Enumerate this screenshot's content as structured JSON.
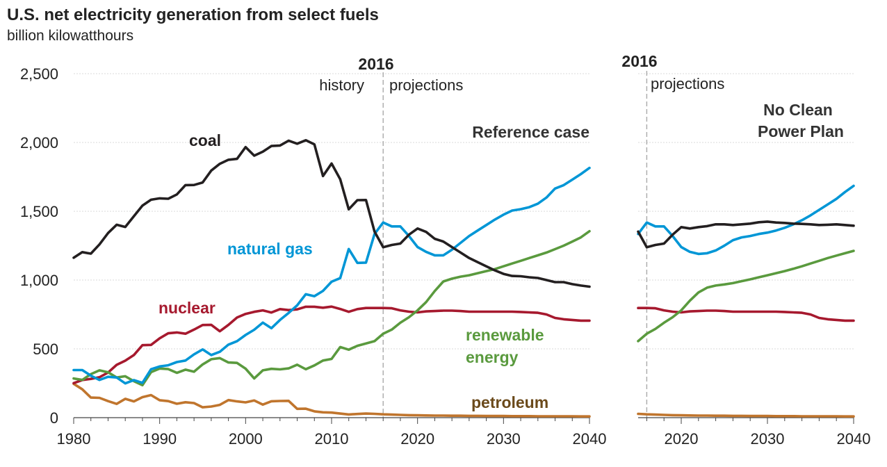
{
  "title": "U.S. net electricity generation from select fuels",
  "subtitle": "billion kilowatthours",
  "colors": {
    "coal": "#231f20",
    "natural_gas": "#0096d6",
    "nuclear": "#a6192e",
    "renewable": "#5a9a3e",
    "petroleum": "#c0752d",
    "axis": "#444444",
    "divider": "#aaaaaa"
  },
  "chart_data": [
    {
      "type": "line",
      "case": "Reference case",
      "divider_year_label": "2016",
      "history_label": "history",
      "projections_label": "projections",
      "xlim": [
        1980,
        2040
      ],
      "ylim": [
        0,
        2500
      ],
      "y_ticks": [
        "0",
        "500",
        "1,000",
        "1,500",
        "2,000",
        "2,500"
      ],
      "x_ticks": [
        "1980",
        "1990",
        "2000",
        "2010",
        "2020",
        "2030",
        "2040"
      ],
      "x": [
        1980,
        1981,
        1982,
        1983,
        1984,
        1985,
        1986,
        1987,
        1988,
        1989,
        1990,
        1991,
        1992,
        1993,
        1994,
        1995,
        1996,
        1997,
        1998,
        1999,
        2000,
        2001,
        2002,
        2003,
        2004,
        2005,
        2006,
        2007,
        2008,
        2009,
        2010,
        2011,
        2012,
        2013,
        2014,
        2015,
        2016,
        2017,
        2018,
        2019,
        2020,
        2021,
        2022,
        2023,
        2024,
        2025,
        2026,
        2027,
        2028,
        2029,
        2030,
        2031,
        2032,
        2033,
        2034,
        2035,
        2036,
        2037,
        2038,
        2039,
        2040
      ],
      "series": [
        {
          "name": "coal",
          "values": [
            1162,
            1203,
            1192,
            1259,
            1342,
            1402,
            1386,
            1464,
            1541,
            1584,
            1594,
            1591,
            1622,
            1690,
            1691,
            1709,
            1796,
            1845,
            1874,
            1881,
            1966,
            1904,
            1933,
            1974,
            1978,
            2013,
            1991,
            2016,
            1986,
            1756,
            1847,
            1733,
            1514,
            1581,
            1582,
            1352,
            1239,
            1255,
            1265,
            1330,
            1375,
            1350,
            1300,
            1280,
            1240,
            1200,
            1160,
            1130,
            1100,
            1070,
            1045,
            1030,
            1028,
            1020,
            1015,
            1000,
            985,
            985,
            970,
            960,
            952
          ]
        },
        {
          "name": "natural gas",
          "values": [
            346,
            346,
            305,
            274,
            297,
            292,
            249,
            273,
            253,
            352,
            372,
            381,
            404,
            415,
            460,
            496,
            455,
            479,
            531,
            556,
            601,
            639,
            691,
            650,
            710,
            761,
            816,
            897,
            883,
            921,
            988,
            1014,
            1226,
            1125,
            1127,
            1335,
            1418,
            1390,
            1390,
            1320,
            1240,
            1205,
            1180,
            1180,
            1220,
            1270,
            1320,
            1360,
            1400,
            1440,
            1475,
            1505,
            1515,
            1530,
            1555,
            1600,
            1665,
            1690,
            1730,
            1770,
            1815
          ]
        },
        {
          "name": "nuclear",
          "values": [
            251,
            273,
            282,
            294,
            328,
            384,
            414,
            455,
            527,
            529,
            577,
            613,
            619,
            610,
            640,
            673,
            675,
            628,
            674,
            728,
            754,
            769,
            780,
            764,
            789,
            782,
            787,
            806,
            806,
            799,
            807,
            790,
            769,
            789,
            797,
            797,
            797,
            795,
            780,
            770,
            765,
            772,
            775,
            778,
            778,
            775,
            770,
            770,
            770,
            770,
            770,
            770,
            768,
            765,
            762,
            750,
            725,
            715,
            710,
            705,
            705
          ]
        },
        {
          "name": "renewable energy",
          "values": [
            285,
            274,
            316,
            344,
            330,
            292,
            301,
            265,
            236,
            331,
            357,
            353,
            326,
            349,
            334,
            387,
            425,
            433,
            401,
            398,
            356,
            285,
            344,
            355,
            351,
            358,
            385,
            352,
            380,
            415,
            427,
            513,
            494,
            522,
            539,
            556,
            610,
            640,
            690,
            730,
            780,
            840,
            920,
            990,
            1010,
            1025,
            1035,
            1050,
            1065,
            1080,
            1100,
            1120,
            1140,
            1160,
            1180,
            1200,
            1225,
            1250,
            1280,
            1310,
            1355
          ]
        },
        {
          "name": "petroleum",
          "values": [
            246,
            206,
            146,
            144,
            120,
            100,
            137,
            118,
            149,
            164,
            127,
            120,
            101,
            112,
            106,
            75,
            81,
            93,
            128,
            118,
            111,
            125,
            95,
            119,
            121,
            122,
            64,
            65,
            46,
            39,
            37,
            30,
            23,
            27,
            30,
            28,
            24,
            22,
            20,
            18,
            17,
            16,
            15,
            15,
            14,
            14,
            13,
            13,
            12,
            12,
            12,
            11,
            11,
            11,
            10,
            10,
            10,
            10,
            10,
            9,
            9
          ]
        }
      ]
    },
    {
      "type": "line",
      "case": "No Clean Power Plan",
      "divider_year_label": "2016",
      "projections_label": "projections",
      "xlim": [
        2015,
        2040
      ],
      "ylim": [
        0,
        2500
      ],
      "x_ticks": [
        "2020",
        "2030",
        "2040"
      ],
      "x": [
        2015,
        2016,
        2017,
        2018,
        2019,
        2020,
        2021,
        2022,
        2023,
        2024,
        2025,
        2026,
        2027,
        2028,
        2029,
        2030,
        2031,
        2032,
        2033,
        2034,
        2035,
        2036,
        2037,
        2038,
        2039,
        2040
      ],
      "series": [
        {
          "name": "coal",
          "values": [
            1352,
            1239,
            1255,
            1265,
            1330,
            1385,
            1375,
            1385,
            1392,
            1405,
            1405,
            1400,
            1405,
            1410,
            1420,
            1425,
            1418,
            1415,
            1410,
            1408,
            1405,
            1400,
            1402,
            1405,
            1400,
            1395
          ]
        },
        {
          "name": "natural gas",
          "values": [
            1335,
            1418,
            1390,
            1390,
            1320,
            1240,
            1205,
            1190,
            1195,
            1215,
            1250,
            1290,
            1310,
            1320,
            1335,
            1345,
            1360,
            1380,
            1405,
            1435,
            1470,
            1510,
            1550,
            1590,
            1640,
            1685
          ]
        },
        {
          "name": "nuclear",
          "values": [
            797,
            797,
            795,
            780,
            770,
            765,
            772,
            775,
            778,
            778,
            775,
            770,
            770,
            770,
            770,
            770,
            770,
            768,
            765,
            762,
            750,
            725,
            715,
            710,
            705,
            705
          ]
        },
        {
          "name": "renewable energy",
          "values": [
            556,
            610,
            645,
            690,
            730,
            780,
            850,
            910,
            945,
            960,
            968,
            978,
            992,
            1005,
            1020,
            1035,
            1050,
            1065,
            1082,
            1100,
            1120,
            1140,
            1160,
            1178,
            1195,
            1212
          ]
        },
        {
          "name": "petroleum",
          "values": [
            28,
            24,
            22,
            20,
            18,
            17,
            16,
            15,
            15,
            14,
            14,
            13,
            13,
            12,
            12,
            12,
            11,
            11,
            11,
            10,
            10,
            10,
            10,
            10,
            9,
            9
          ]
        }
      ]
    }
  ],
  "labels": {
    "coal": "coal",
    "natural_gas": "natural gas",
    "nuclear": "nuclear",
    "renewable_line1": "renewable",
    "renewable_line2": "energy",
    "petroleum": "petroleum",
    "case_right_line1": "No Clean",
    "case_right_line2": "Power Plan"
  }
}
